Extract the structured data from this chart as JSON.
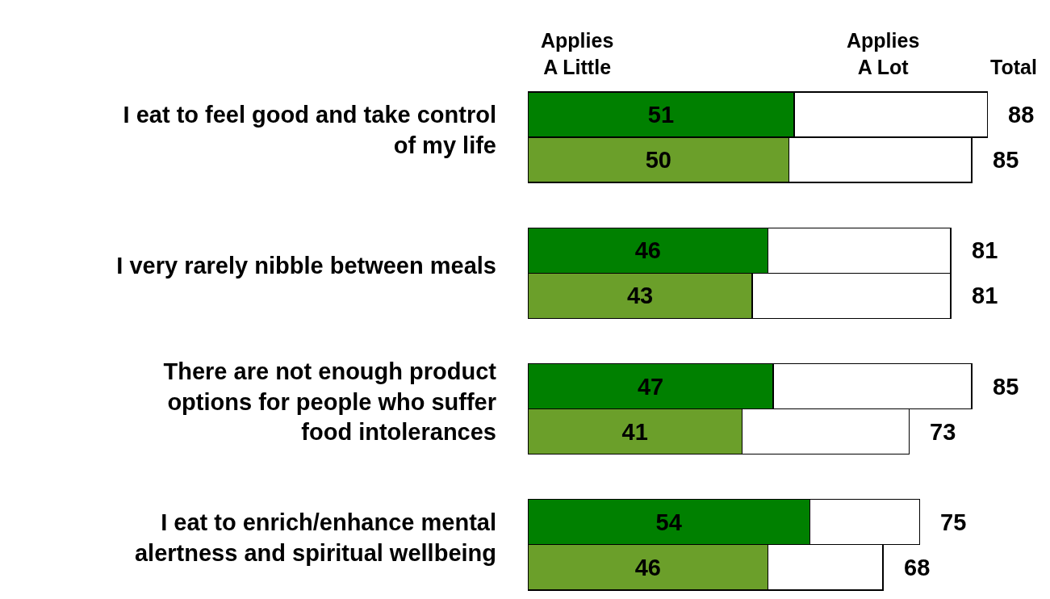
{
  "chart_data": {
    "type": "bar",
    "orientation": "horizontal",
    "stacked": true,
    "categories": [
      "I eat to feel good and take control\nof my life",
      null,
      null,
      "I very rarely nibble between meals",
      null,
      null,
      "There are not enough product\noptions for people who suffer\nfood intolerances",
      null,
      null,
      "I eat to enrich/enhance mental\nalertness and spiritual wellbeing",
      null
    ],
    "series": [
      {
        "name": "Applies\nA Little",
        "colors": [
          "#008000",
          "#6b9f2a",
          null,
          "#008000",
          "#6b9f2a",
          null,
          "#008000",
          "#6b9f2a",
          null,
          "#008000",
          "#6b9f2a"
        ],
        "values": [
          51,
          50,
          null,
          46,
          43,
          null,
          47,
          41,
          null,
          54,
          46
        ],
        "value_labels": [
          "51",
          "50",
          null,
          "46",
          "43",
          null,
          "47",
          "41",
          null,
          "54",
          "46"
        ]
      },
      {
        "name": "Applies\nA Lot",
        "color": "#ffffff",
        "values": [
          37,
          35,
          null,
          35,
          38,
          null,
          38,
          32,
          null,
          21,
          22
        ]
      }
    ],
    "totals": [
      "88",
      "85",
      null,
      "81",
      "81",
      null,
      "85",
      "73",
      null,
      "75",
      "68"
    ],
    "annotations": [
      "Total"
    ],
    "tick_labels": "y",
    "grid": false,
    "legend": false
  }
}
